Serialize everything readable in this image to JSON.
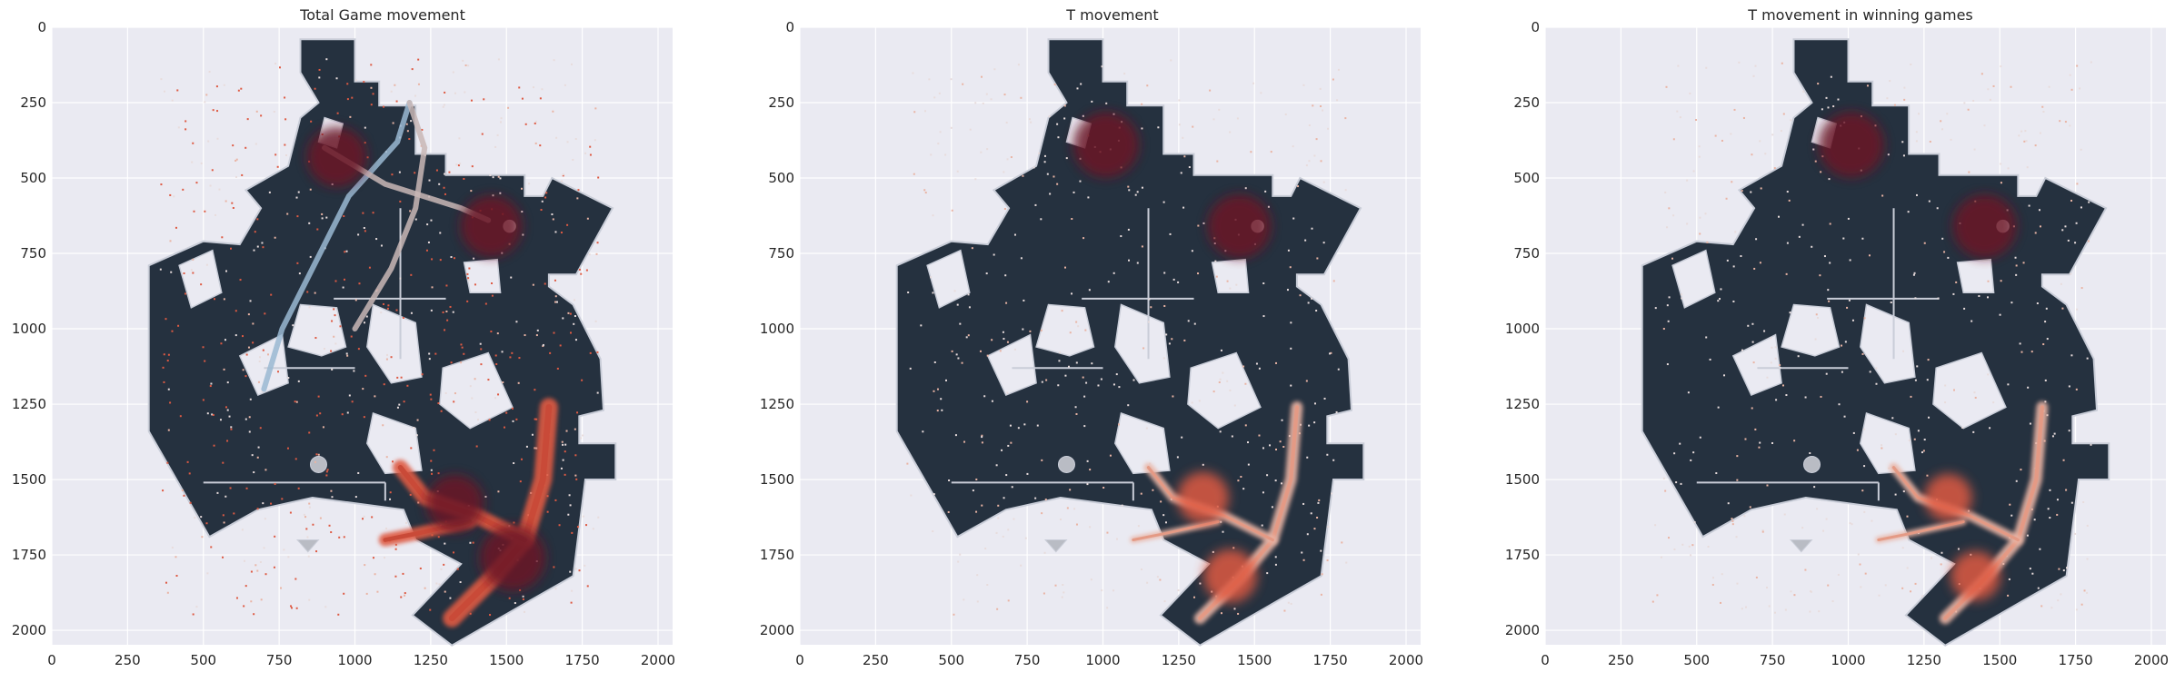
{
  "colors": {
    "axes_bg": "#eaeaf2",
    "grid": "#ffffff",
    "map_fill": "#25313f",
    "map_outline": "#c9cdd8",
    "heat_low": "#e9b4a4",
    "heat_mid": "#de5a43",
    "heat_high": "#6b1626",
    "path_light": "#c9b7b6",
    "path_blue": "#9ab8d2"
  },
  "chart_data": [
    {
      "type": "heatmap",
      "title": "Total Game movement",
      "xlim": [
        0,
        2048
      ],
      "ylim": [
        2048,
        0
      ],
      "xticks": [
        0,
        250,
        500,
        750,
        1000,
        1250,
        1500,
        1750,
        2000
      ],
      "yticks": [
        0,
        250,
        500,
        750,
        1000,
        1250,
        1500,
        1750,
        2000
      ],
      "grid": true,
      "hotspots": [
        {
          "x": 940,
          "y": 430,
          "intensity": 0.85
        },
        {
          "x": 1450,
          "y": 660,
          "intensity": 0.9
        },
        {
          "x": 1520,
          "y": 1760,
          "intensity": 1.0
        },
        {
          "x": 1330,
          "y": 1580,
          "intensity": 0.8
        }
      ]
    },
    {
      "type": "heatmap",
      "title": "T movement",
      "xlim": [
        0,
        2048
      ],
      "ylim": [
        2048,
        0
      ],
      "xticks": [
        0,
        250,
        500,
        750,
        1000,
        1250,
        1500,
        1750,
        2000
      ],
      "yticks": [
        0,
        250,
        500,
        750,
        1000,
        1250,
        1500,
        1750,
        2000
      ],
      "grid": true,
      "hotspots": [
        {
          "x": 1010,
          "y": 390,
          "intensity": 1.0
        },
        {
          "x": 1450,
          "y": 660,
          "intensity": 0.95
        },
        {
          "x": 1420,
          "y": 1820,
          "intensity": 0.7
        },
        {
          "x": 1330,
          "y": 1560,
          "intensity": 0.65
        }
      ]
    },
    {
      "type": "heatmap",
      "title": "T movement in winning games",
      "xlim": [
        0,
        2048
      ],
      "ylim": [
        2048,
        0
      ],
      "xticks": [
        0,
        250,
        500,
        750,
        1000,
        1250,
        1500,
        1750,
        2000
      ],
      "yticks": [
        0,
        250,
        500,
        750,
        1000,
        1250,
        1500,
        1750,
        2000
      ],
      "grid": true,
      "hotspots": [
        {
          "x": 1010,
          "y": 390,
          "intensity": 1.0
        },
        {
          "x": 1450,
          "y": 660,
          "intensity": 0.95
        },
        {
          "x": 1420,
          "y": 1820,
          "intensity": 0.6
        },
        {
          "x": 1330,
          "y": 1560,
          "intensity": 0.55
        }
      ]
    }
  ]
}
